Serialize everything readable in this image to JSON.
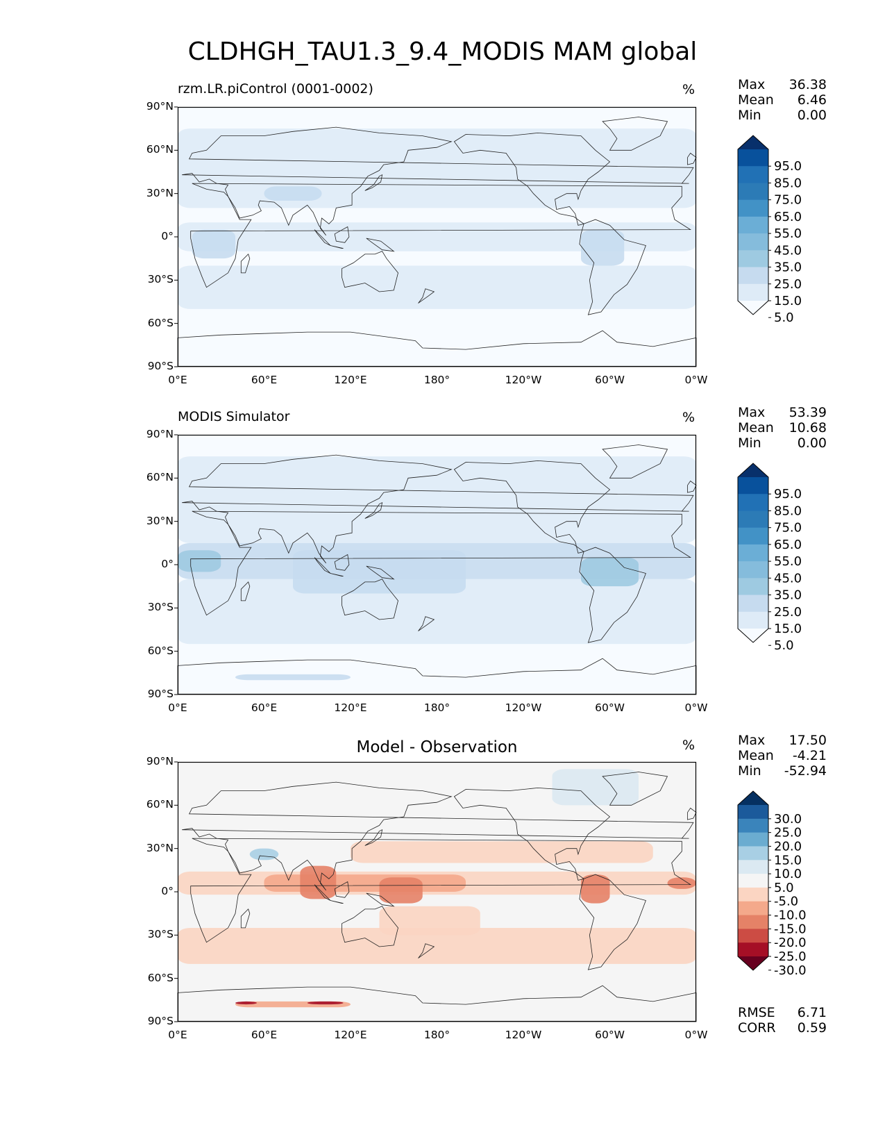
{
  "figure_title": "CLDHGH_TAU1.3_9.4_MODIS MAM global",
  "panels": [
    {
      "title": "rzm.LR.piControl (0001-0002)",
      "units": "%",
      "stats": [
        {
          "label": "Max",
          "value": "36.38"
        },
        {
          "label": "Mean",
          "value": "6.46"
        },
        {
          "label": "Min",
          "value": "0.00"
        }
      ],
      "colorbar_labels": [
        "95.0",
        "85.0",
        "75.0",
        "65.0",
        "55.0",
        "45.0",
        "35.0",
        "25.0",
        "15.0",
        "5.0"
      ]
    },
    {
      "title": "MODIS Simulator",
      "units": "%",
      "stats": [
        {
          "label": "Max",
          "value": "53.39"
        },
        {
          "label": "Mean",
          "value": "10.68"
        },
        {
          "label": "Min",
          "value": "0.00"
        }
      ],
      "colorbar_labels": [
        "95.0",
        "85.0",
        "75.0",
        "65.0",
        "55.0",
        "45.0",
        "35.0",
        "25.0",
        "15.0",
        "5.0"
      ]
    },
    {
      "title": "Model - Observation",
      "units": "%",
      "stats": [
        {
          "label": "Max",
          "value": "17.50"
        },
        {
          "label": "Mean",
          "value": "-4.21"
        },
        {
          "label": "Min",
          "value": "-52.94"
        }
      ],
      "colorbar_labels": [
        "30.0",
        "25.0",
        "20.0",
        "15.0",
        "10.0",
        "5.0",
        "-5.0",
        "-10.0",
        "-15.0",
        "-20.0",
        "-25.0",
        "-30.0"
      ],
      "metrics": [
        {
          "label": "RMSE",
          "value": "6.71"
        },
        {
          "label": "CORR",
          "value": "0.59"
        }
      ]
    }
  ],
  "x_ticks": [
    "0°E",
    "60°E",
    "120°E",
    "180°",
    "120°W",
    "60°W",
    "0°W"
  ],
  "y_ticks": [
    "90°N",
    "60°N",
    "30°N",
    "0°",
    "30°S",
    "60°S",
    "90°S"
  ],
  "chart_data": [
    {
      "type": "heatmap",
      "title": "rzm.LR.piControl (0001-0002)",
      "units": "%",
      "x": [
        "0°E",
        "60°E",
        "120°E",
        "180°",
        "120°W",
        "60°W",
        "0°W"
      ],
      "y": [
        "90°N",
        "60°N",
        "30°N",
        "0°",
        "30°S",
        "60°S",
        "90°S"
      ],
      "max": 36.38,
      "mean": 6.46,
      "min": 0.0,
      "levels": [
        5,
        15,
        25,
        35,
        45,
        55,
        65,
        75,
        85,
        95
      ],
      "colors": [
        "#f7fbff",
        "#deebf7",
        "#c6dbef",
        "#9ecae1",
        "#85bcdc",
        "#6baed6",
        "#4292c6",
        "#2c7bb6",
        "#2171b5",
        "#08519c",
        "#08306b"
      ]
    },
    {
      "type": "heatmap",
      "title": "MODIS Simulator",
      "units": "%",
      "x": [
        "0°E",
        "60°E",
        "120°E",
        "180°",
        "120°W",
        "60°W",
        "0°W"
      ],
      "y": [
        "90°N",
        "60°N",
        "30°N",
        "0°",
        "30°S",
        "60°S",
        "90°S"
      ],
      "max": 53.39,
      "mean": 10.68,
      "min": 0.0,
      "levels": [
        5,
        15,
        25,
        35,
        45,
        55,
        65,
        75,
        85,
        95
      ],
      "colors": [
        "#f7fbff",
        "#deebf7",
        "#c6dbef",
        "#9ecae1",
        "#85bcdc",
        "#6baed6",
        "#4292c6",
        "#2c7bb6",
        "#2171b5",
        "#08519c",
        "#08306b"
      ]
    },
    {
      "type": "heatmap",
      "title": "Model - Observation",
      "units": "%",
      "x": [
        "0°E",
        "60°E",
        "120°E",
        "180°",
        "120°W",
        "60°W",
        "0°W"
      ],
      "y": [
        "90°N",
        "60°N",
        "30°N",
        "0°",
        "30°S",
        "60°S",
        "90°S"
      ],
      "max": 17.5,
      "mean": -4.21,
      "min": -52.94,
      "rmse": 6.71,
      "corr": 0.59,
      "levels": [
        -30,
        -25,
        -20,
        -15,
        -10,
        -5,
        5,
        10,
        15,
        20,
        25,
        30
      ],
      "colors": [
        "#67001f",
        "#a50f26",
        "#cc4c44",
        "#e58267",
        "#f4a98b",
        "#fbd5c2",
        "#f5f5f5",
        "#dbe9f2",
        "#a8cfe4",
        "#6bacd0",
        "#3a84bb",
        "#1b5a9b",
        "#053061"
      ]
    }
  ]
}
